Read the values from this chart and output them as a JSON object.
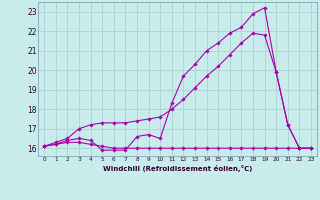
{
  "xlabel": "Windchill (Refroidissement éolien,°C)",
  "bg_color": "#c8ecec",
  "grid_color": "#b0d0d0",
  "line_color": "#aa00aa",
  "x_ticks": [
    0,
    1,
    2,
    3,
    4,
    5,
    6,
    7,
    8,
    9,
    10,
    11,
    12,
    13,
    14,
    15,
    16,
    17,
    18,
    19,
    20,
    21,
    22,
    23
  ],
  "y_ticks": [
    16,
    17,
    18,
    19,
    20,
    21,
    22,
    23
  ],
  "xlim": [
    -0.5,
    23.5
  ],
  "ylim": [
    15.6,
    23.5
  ],
  "line1_x": [
    0,
    1,
    2,
    3,
    4,
    5,
    6,
    7,
    8,
    9,
    10,
    11,
    12,
    13,
    14,
    15,
    16,
    17,
    18,
    19,
    20,
    21,
    22,
    23
  ],
  "line1_y": [
    16.1,
    16.2,
    16.3,
    16.3,
    16.2,
    16.1,
    16.0,
    16.0,
    16.0,
    16.0,
    16.0,
    16.0,
    16.0,
    16.0,
    16.0,
    16.0,
    16.0,
    16.0,
    16.0,
    16.0,
    16.0,
    16.0,
    16.0,
    16.0
  ],
  "line2_x": [
    0,
    1,
    2,
    3,
    4,
    5,
    6,
    7,
    8,
    9,
    10,
    11,
    12,
    13,
    14,
    15,
    16,
    17,
    18,
    19,
    20,
    21,
    22,
    23
  ],
  "line2_y": [
    16.1,
    16.2,
    16.4,
    16.5,
    16.4,
    15.9,
    15.9,
    15.9,
    16.6,
    16.7,
    16.5,
    18.3,
    19.7,
    20.3,
    21.0,
    21.4,
    21.9,
    22.2,
    22.9,
    23.2,
    19.9,
    17.2,
    16.0,
    16.0
  ],
  "line3_x": [
    0,
    1,
    2,
    3,
    4,
    5,
    6,
    7,
    8,
    9,
    10,
    11,
    12,
    13,
    14,
    15,
    16,
    17,
    18,
    19,
    20,
    21,
    22,
    23
  ],
  "line3_y": [
    16.1,
    16.3,
    16.5,
    17.0,
    17.2,
    17.3,
    17.3,
    17.3,
    17.4,
    17.5,
    17.6,
    18.0,
    18.5,
    19.1,
    19.7,
    20.2,
    20.8,
    21.4,
    21.9,
    21.8,
    19.9,
    17.2,
    16.0,
    16.0
  ]
}
